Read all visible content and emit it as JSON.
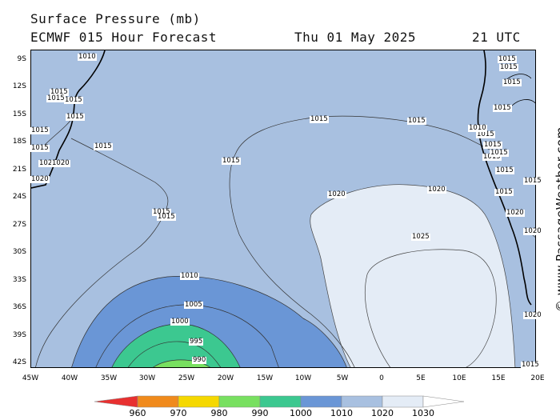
{
  "header": {
    "title": "Surface Pressure (mb)",
    "model": "ECMWF 015 Hour Forecast",
    "date": "Thu 01 May 2025",
    "time": "21 UTC"
  },
  "watermark": "© www.PassageWeather.com",
  "lat_labels": [
    "9S",
    "12S",
    "15S",
    "18S",
    "21S",
    "24S",
    "27S",
    "30S",
    "33S",
    "36S",
    "39S",
    "42S"
  ],
  "lon_labels": [
    "45W",
    "40W",
    "35W",
    "30W",
    "25W",
    "20W",
    "15W",
    "10W",
    "5W",
    "0",
    "5E",
    "10E",
    "15E",
    "20E"
  ],
  "legend": {
    "labels": [
      "960",
      "970",
      "980",
      "990",
      "1000",
      "1010",
      "1020",
      "1030"
    ],
    "colors": [
      "#e83030",
      "#f08a1c",
      "#f5d800",
      "#78e060",
      "#3cc890",
      "#6a96d6",
      "#a8c0e0",
      "#e4ecf6"
    ]
  },
  "contour_labels": [
    {
      "text": "1010"
    },
    {
      "text": "1015"
    },
    {
      "text": "1015"
    },
    {
      "text": "1015"
    },
    {
      "text": "1015"
    },
    {
      "text": "1015"
    },
    {
      "text": "1015"
    },
    {
      "text": "1015"
    },
    {
      "text": "1015"
    },
    {
      "text": "1015"
    },
    {
      "text": "1020"
    },
    {
      "text": "1020"
    },
    {
      "text": "1025"
    },
    {
      "text": "1010"
    },
    {
      "text": "1005"
    },
    {
      "text": "1000"
    },
    {
      "text": "995"
    },
    {
      "text": "990"
    },
    {
      "text": "1015"
    },
    {
      "text": "1015"
    },
    {
      "text": "1015"
    },
    {
      "text": "1015"
    },
    {
      "text": "1015"
    },
    {
      "text": "1020"
    },
    {
      "text": "1020"
    },
    {
      "text": "1020"
    },
    {
      "text": "1015"
    },
    {
      "text": "1015"
    },
    {
      "text": "1015"
    },
    {
      "text": "1010"
    },
    {
      "text": "1015"
    },
    {
      "text": "1015"
    },
    {
      "text": "1015"
    },
    {
      "text": "1015"
    },
    {
      "text": "1015"
    },
    {
      "text": "1020"
    },
    {
      "text": "1020"
    },
    {
      "text": "1015"
    },
    {
      "text": "1020"
    },
    {
      "text": "1015"
    }
  ]
}
